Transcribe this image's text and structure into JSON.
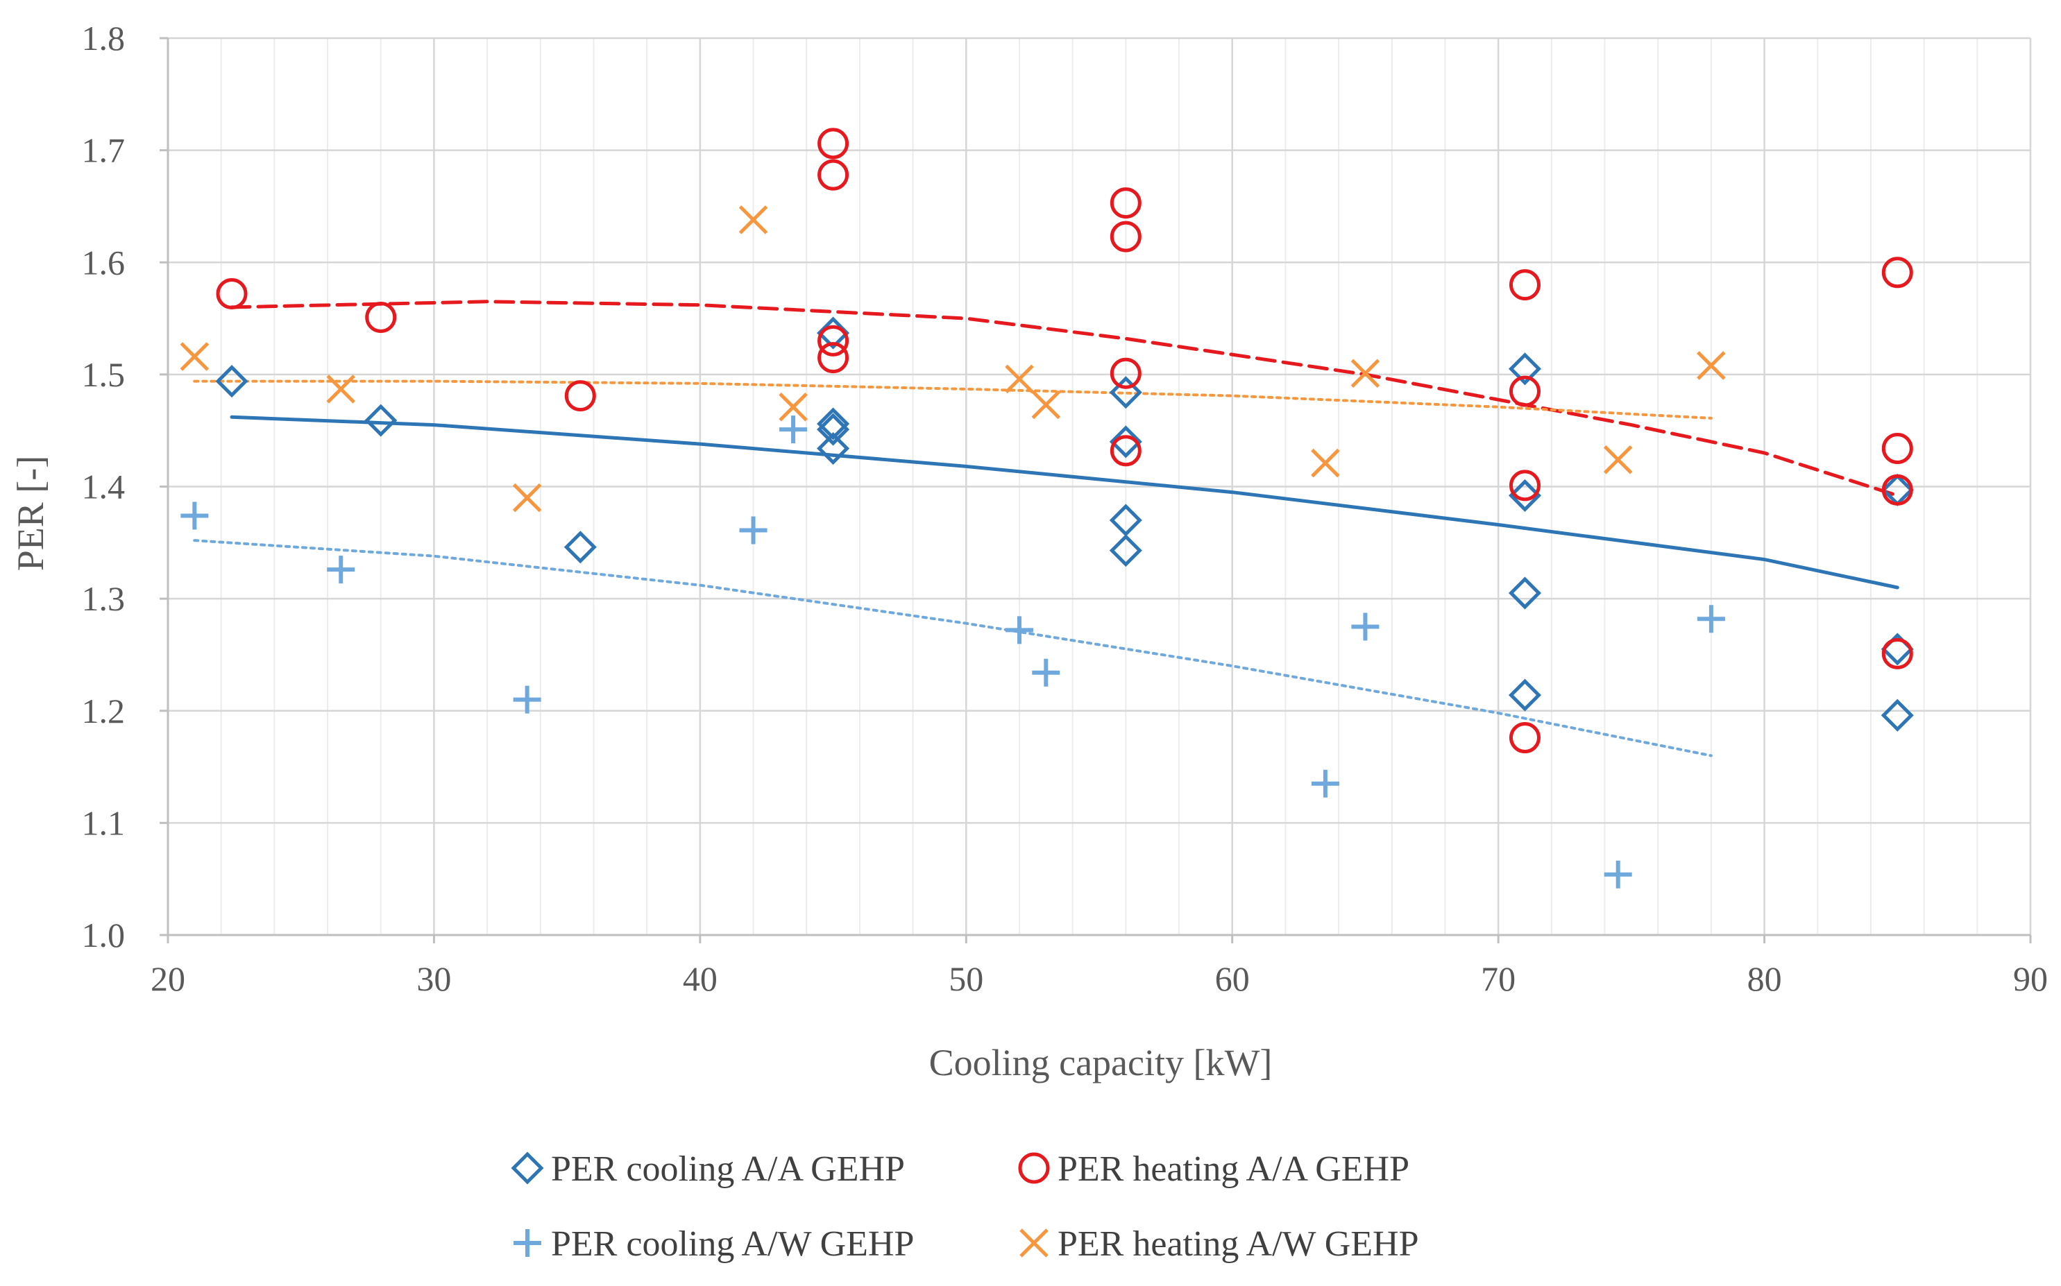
{
  "chart_data": {
    "type": "scatter",
    "title": "",
    "xlabel": "Cooling capacity [kW]",
    "ylabel": "PER [-]",
    "xlim": [
      20,
      90
    ],
    "ylim": [
      1.0,
      1.8
    ],
    "xticks": [
      20,
      30,
      40,
      50,
      60,
      70,
      80,
      90
    ],
    "xtick_labels": [
      "20",
      "30",
      "40",
      "50",
      "60",
      "70",
      "80",
      "90"
    ],
    "yticks": [
      1.0,
      1.1,
      1.2,
      1.3,
      1.4,
      1.5,
      1.6,
      1.7,
      1.8
    ],
    "ytick_labels": [
      "1.0",
      "1.1",
      "1.2",
      "1.3",
      "1.4",
      "1.5",
      "1.6",
      "1.7",
      "1.8"
    ],
    "grid": true,
    "minor_x_gridlines_every": 2,
    "legend_position": "bottom",
    "series": [
      {
        "name": "PER cooling A/A GEHP",
        "marker": "diamond",
        "color": "#2E75B6",
        "points": [
          [
            22.4,
            1.494
          ],
          [
            28,
            1.459
          ],
          [
            35.5,
            1.346
          ],
          [
            45,
            1.537
          ],
          [
            45,
            1.456
          ],
          [
            45,
            1.451
          ],
          [
            45,
            1.434
          ],
          [
            56,
            1.484
          ],
          [
            56,
            1.44
          ],
          [
            56,
            1.37
          ],
          [
            56,
            1.343
          ],
          [
            71,
            1.505
          ],
          [
            71,
            1.392
          ],
          [
            71,
            1.305
          ],
          [
            71,
            1.214
          ],
          [
            85,
            1.397
          ],
          [
            85,
            1.255
          ],
          [
            85,
            1.196
          ]
        ],
        "trendline": {
          "style": "solid",
          "x_range": [
            22.4,
            85
          ],
          "points": [
            [
              22.4,
              1.462
            ],
            [
              30,
              1.455
            ],
            [
              40,
              1.438
            ],
            [
              50,
              1.418
            ],
            [
              60,
              1.395
            ],
            [
              70,
              1.366
            ],
            [
              80,
              1.335
            ],
            [
              85,
              1.31
            ]
          ]
        }
      },
      {
        "name": "PER heating A/A GEHP",
        "marker": "circle",
        "color": "#E5191E",
        "points": [
          [
            22.4,
            1.572
          ],
          [
            28,
            1.551
          ],
          [
            35.5,
            1.481
          ],
          [
            45,
            1.706
          ],
          [
            45,
            1.678
          ],
          [
            45,
            1.53
          ],
          [
            45,
            1.515
          ],
          [
            56,
            1.653
          ],
          [
            56,
            1.623
          ],
          [
            56,
            1.501
          ],
          [
            56,
            1.432
          ],
          [
            71,
            1.58
          ],
          [
            71,
            1.485
          ],
          [
            71,
            1.401
          ],
          [
            71,
            1.176
          ],
          [
            85,
            1.591
          ],
          [
            85,
            1.434
          ],
          [
            85,
            1.397
          ],
          [
            85,
            1.251
          ]
        ],
        "trendline": {
          "style": "dashed",
          "x_range": [
            22.4,
            85
          ],
          "points": [
            [
              22.4,
              1.56
            ],
            [
              32,
              1.565
            ],
            [
              40,
              1.562
            ],
            [
              50,
              1.55
            ],
            [
              56,
              1.532
            ],
            [
              65,
              1.5
            ],
            [
              75,
              1.455
            ],
            [
              80,
              1.43
            ],
            [
              85,
              1.392
            ]
          ]
        }
      },
      {
        "name": "PER cooling A/W GEHP",
        "marker": "plus",
        "color": "#6FA8DC",
        "points": [
          [
            21,
            1.374
          ],
          [
            26.5,
            1.326
          ],
          [
            33.5,
            1.21
          ],
          [
            42,
            1.361
          ],
          [
            43.5,
            1.451
          ],
          [
            52,
            1.272
          ],
          [
            53,
            1.234
          ],
          [
            63.5,
            1.135
          ],
          [
            65,
            1.275
          ],
          [
            74.5,
            1.054
          ],
          [
            78,
            1.282
          ]
        ],
        "trendline": {
          "style": "dotted",
          "x_range": [
            21,
            78
          ],
          "points": [
            [
              21,
              1.352
            ],
            [
              30,
              1.338
            ],
            [
              40,
              1.312
            ],
            [
              50,
              1.278
            ],
            [
              60,
              1.24
            ],
            [
              70,
              1.198
            ],
            [
              78,
              1.16
            ]
          ]
        }
      },
      {
        "name": "PER heating A/W GEHP",
        "marker": "x",
        "color": "#F6963F",
        "points": [
          [
            21,
            1.516
          ],
          [
            26.5,
            1.487
          ],
          [
            33.5,
            1.39
          ],
          [
            42,
            1.638
          ],
          [
            43.5,
            1.471
          ],
          [
            52,
            1.496
          ],
          [
            53,
            1.473
          ],
          [
            63.5,
            1.421
          ],
          [
            65,
            1.501
          ],
          [
            74.5,
            1.424
          ],
          [
            78,
            1.508
          ]
        ],
        "trendline": {
          "style": "dotted",
          "x_range": [
            21,
            78
          ],
          "points": [
            [
              21,
              1.494
            ],
            [
              30,
              1.494
            ],
            [
              40,
              1.492
            ],
            [
              50,
              1.487
            ],
            [
              60,
              1.481
            ],
            [
              70,
              1.471
            ],
            [
              78,
              1.461
            ]
          ]
        }
      }
    ]
  }
}
